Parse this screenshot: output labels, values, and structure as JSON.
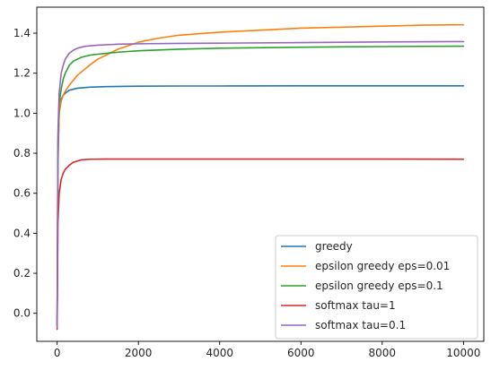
{
  "chart_data": {
    "type": "line",
    "title": "",
    "xlabel": "",
    "ylabel": "",
    "xlim": [
      -500,
      10500
    ],
    "ylim": [
      -0.14,
      1.53
    ],
    "xticks": [
      0,
      2000,
      4000,
      6000,
      8000,
      10000
    ],
    "xtick_labels": [
      "0",
      "2000",
      "4000",
      "6000",
      "8000",
      "10000"
    ],
    "yticks": [
      0.0,
      0.2,
      0.4,
      0.6,
      0.8,
      1.0,
      1.2,
      1.4
    ],
    "ytick_labels": [
      "0.0",
      "0.2",
      "0.4",
      "0.6",
      "0.8",
      "1.0",
      "1.2",
      "1.4"
    ],
    "grid": false,
    "legend_position": "lower-right",
    "series": [
      {
        "name": "greedy",
        "color": "#1f77b4",
        "x": [
          0,
          20,
          50,
          100,
          150,
          200,
          300,
          500,
          800,
          1200,
          2000,
          3000,
          4000,
          6000,
          8000,
          10000
        ],
        "y": [
          -0.05,
          0.75,
          1.0,
          1.07,
          1.09,
          1.1,
          1.115,
          1.125,
          1.13,
          1.133,
          1.135,
          1.136,
          1.136,
          1.137,
          1.137,
          1.137
        ]
      },
      {
        "name": "epsilon greedy eps=0.01",
        "color": "#ff7f0e",
        "x": [
          0,
          20,
          50,
          100,
          150,
          200,
          300,
          500,
          800,
          1000,
          1500,
          2000,
          2500,
          3000,
          4000,
          5000,
          6000,
          7000,
          8000,
          9000,
          10000
        ],
        "y": [
          -0.06,
          0.8,
          1.0,
          1.06,
          1.09,
          1.11,
          1.14,
          1.19,
          1.24,
          1.27,
          1.32,
          1.355,
          1.375,
          1.39,
          1.405,
          1.415,
          1.425,
          1.43,
          1.435,
          1.44,
          1.442
        ]
      },
      {
        "name": "epsilon greedy eps=0.1",
        "color": "#2ca02c",
        "x": [
          0,
          20,
          50,
          100,
          150,
          200,
          300,
          400,
          600,
          800,
          1000,
          1500,
          2000,
          3000,
          4000,
          6000,
          8000,
          10000
        ],
        "y": [
          -0.06,
          0.85,
          1.05,
          1.12,
          1.17,
          1.2,
          1.24,
          1.26,
          1.28,
          1.29,
          1.295,
          1.305,
          1.312,
          1.32,
          1.325,
          1.33,
          1.333,
          1.335
        ]
      },
      {
        "name": "softmax tau=1",
        "color": "#d62728",
        "x": [
          0,
          20,
          50,
          100,
          150,
          200,
          300,
          400,
          600,
          800,
          1200,
          2000,
          4000,
          6000,
          8000,
          10000
        ],
        "y": [
          -0.08,
          0.45,
          0.6,
          0.67,
          0.7,
          0.72,
          0.74,
          0.755,
          0.767,
          0.77,
          0.771,
          0.771,
          0.771,
          0.771,
          0.771,
          0.77
        ]
      },
      {
        "name": "softmax tau=0.1",
        "color": "#9467bd",
        "x": [
          0,
          20,
          50,
          100,
          150,
          200,
          300,
          400,
          500,
          700,
          1000,
          1500,
          2000,
          3000,
          4000,
          6000,
          8000,
          10000
        ],
        "y": [
          -0.07,
          0.9,
          1.1,
          1.2,
          1.24,
          1.27,
          1.3,
          1.315,
          1.325,
          1.335,
          1.34,
          1.345,
          1.347,
          1.349,
          1.35,
          1.353,
          1.356,
          1.358
        ]
      }
    ]
  }
}
